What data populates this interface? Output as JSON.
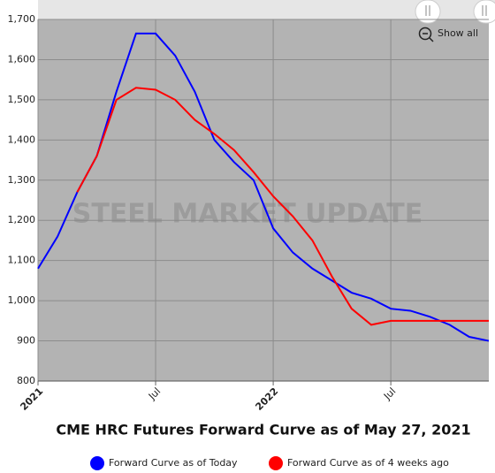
{
  "chart_data": {
    "type": "line",
    "title": "CME HRC Futures Forward Curve as of May 27, 2021",
    "watermark": "STEEL MARKET UPDATE",
    "button": "Show all",
    "x": [
      "2021-01",
      "2021-02",
      "2021-03",
      "2021-04",
      "2021-05",
      "2021-06",
      "2021-07",
      "2021-08",
      "2021-09",
      "2021-10",
      "2021-11",
      "2021-12",
      "2022-01",
      "2022-02",
      "2022-03",
      "2022-04",
      "2022-05",
      "2022-06",
      "2022-07",
      "2022-08",
      "2022-09",
      "2022-10",
      "2022-11",
      "2022-12"
    ],
    "series": [
      {
        "name": "Forward Curve as of Today",
        "color": "#0000ff",
        "values": [
          1080,
          1160,
          1270,
          1360,
          1520,
          1665,
          1665,
          1610,
          1520,
          1400,
          1345,
          1300,
          1180,
          1120,
          1080,
          1050,
          1020,
          1005,
          980,
          975,
          960,
          940,
          910,
          900
        ]
      },
      {
        "name": "Forward Curve as of 4 weeks ago",
        "color": "#ff0000",
        "values": [
          null,
          null,
          1270,
          1360,
          1500,
          1530,
          1525,
          1500,
          1450,
          1415,
          1375,
          1320,
          1260,
          1210,
          1150,
          1060,
          980,
          940,
          950,
          950,
          950,
          950,
          950,
          950
        ]
      }
    ],
    "xticks": [
      {
        "value": "2021-01",
        "label": "2021"
      },
      {
        "value": "2021-07",
        "label": "Jul"
      },
      {
        "value": "2022-01",
        "label": "2022"
      },
      {
        "value": "2022-07",
        "label": "Jul"
      }
    ],
    "ylim": [
      800,
      1700
    ],
    "yticks": [
      800,
      900,
      {
        "value": 1000,
        "label": "1,000"
      },
      {
        "value": 1100,
        "label": "1,100"
      },
      {
        "value": 1200,
        "label": "1,200"
      },
      {
        "value": 1300,
        "label": "1,300"
      },
      {
        "value": 1400,
        "label": "1,400"
      },
      {
        "value": 1500,
        "label": "1,500"
      },
      {
        "value": 1600,
        "label": "1,600"
      },
      {
        "value": 1700,
        "label": "1,700"
      }
    ],
    "grid": true
  }
}
